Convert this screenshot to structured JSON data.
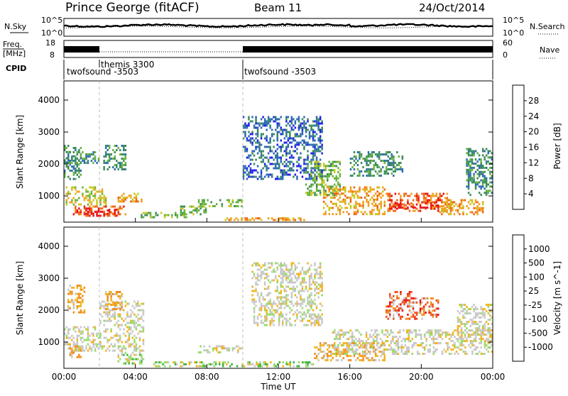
{
  "header": {
    "station": "Prince George (fitACF)",
    "beam": "Beam 11",
    "date": "24/Oct/2014"
  },
  "noise_panel": {
    "left_label": "N.Sky",
    "left_ticks": [
      "10^5",
      "10^0"
    ],
    "right_label": "N.Search",
    "right_ticks": [
      "10^5",
      "10^0"
    ]
  },
  "freq_panel": {
    "left_label_1": "Freq.",
    "left_label_2": "[MHz]",
    "left_ticks": [
      "18",
      "8"
    ],
    "right_label": "Nave",
    "right_ticks": [
      "60",
      "0"
    ]
  },
  "cpid_panel": {
    "label": "CPID",
    "segments": [
      {
        "name": "twofsound -3503",
        "start_hour": 0
      },
      {
        "name": "themis 3300",
        "start_hour": 2
      },
      {
        "name": "twofsound -3503",
        "start_hour": 10
      }
    ]
  },
  "x_axis": {
    "label": "Time UT",
    "ticks": [
      "00:00",
      "04:00",
      "08:00",
      "12:00",
      "16:00",
      "20:00",
      "00:00"
    ]
  },
  "chart_data": [
    {
      "type": "heatmap",
      "panel": "power",
      "ylabel": "Slant Range [km]",
      "yticks": [
        "1000",
        "2000",
        "3000",
        "4000"
      ],
      "ylim": [
        180,
        4600
      ],
      "xlim_hours": [
        0,
        24
      ],
      "colorbar": {
        "label": "Power [dB]",
        "ticks": [
          "4",
          "8",
          "12",
          "16",
          "20",
          "24",
          "28"
        ],
        "colors": [
          "#1e1ef0",
          "#2e6ab4",
          "#3a8c5a",
          "#68b43c",
          "#c8c81e",
          "#f0a01e",
          "#f06414",
          "#e61414"
        ],
        "range": [
          0,
          32
        ]
      },
      "regions": [
        {
          "t": [
            0.1,
            2.4
          ],
          "r": [
            700,
            1300
          ],
          "level": 4
        },
        {
          "t": [
            0.5,
            3.5
          ],
          "r": [
            400,
            700
          ],
          "level": 6
        },
        {
          "t": [
            1.2,
            3.0
          ],
          "r": [
            350,
            600
          ],
          "level": 7
        },
        {
          "t": [
            3.0,
            4.4
          ],
          "r": [
            800,
            1100
          ],
          "level": 5
        },
        {
          "t": [
            0.0,
            1.0
          ],
          "r": [
            1500,
            2600
          ],
          "level": 2
        },
        {
          "t": [
            0.2,
            2.0
          ],
          "r": [
            2000,
            2400
          ],
          "level": 2
        },
        {
          "t": [
            2.2,
            3.5
          ],
          "r": [
            1800,
            2600
          ],
          "level": 2
        },
        {
          "t": [
            4.3,
            7.0
          ],
          "r": [
            300,
            500
          ],
          "level": 3
        },
        {
          "t": [
            6.5,
            8.0
          ],
          "r": [
            400,
            700
          ],
          "level": 3
        },
        {
          "t": [
            7.5,
            10.0
          ],
          "r": [
            650,
            900
          ],
          "level": 3
        },
        {
          "t": [
            9.0,
            13.5
          ],
          "r": [
            230,
            330
          ],
          "level": 5
        },
        {
          "t": [
            10.0,
            14.5
          ],
          "r": [
            1500,
            3500
          ],
          "level": 1
        },
        {
          "t": [
            13.5,
            15.5
          ],
          "r": [
            1000,
            2100
          ],
          "level": 3
        },
        {
          "t": [
            14.5,
            18.0
          ],
          "r": [
            400,
            1300
          ],
          "level": 5
        },
        {
          "t": [
            16.0,
            19.0
          ],
          "r": [
            1600,
            2400
          ],
          "level": 2
        },
        {
          "t": [
            18.0,
            21.5
          ],
          "r": [
            500,
            1100
          ],
          "level": 6
        },
        {
          "t": [
            18.5,
            21.0
          ],
          "r": [
            600,
            800
          ],
          "level": 7
        },
        {
          "t": [
            21.0,
            23.5
          ],
          "r": [
            400,
            900
          ],
          "level": 5
        },
        {
          "t": [
            22.5,
            24.0
          ],
          "r": [
            1000,
            2500
          ],
          "level": 2
        }
      ]
    },
    {
      "type": "heatmap",
      "panel": "velocity",
      "ylabel": "Slant Range [km]",
      "yticks": [
        "1000",
        "2000",
        "3000",
        "4000"
      ],
      "ylim": [
        180,
        4600
      ],
      "xlim_hours": [
        0,
        24
      ],
      "colorbar": {
        "label": "Velocity [m s^-1]",
        "ticks": [
          "1000",
          "500",
          "100",
          "25",
          "-25",
          "-100",
          "-500",
          "-1000"
        ],
        "colors": [
          "#1e46c8",
          "#3c8c5a",
          "#3cb43c",
          "#96dc64",
          "#c8c8c8",
          "#f0b41e",
          "#f08c1e",
          "#f0501e",
          "#e61414"
        ]
      },
      "regions": [
        {
          "t": [
            0.0,
            4.5
          ],
          "r": [
            700,
            1500
          ],
          "class": "ground"
        },
        {
          "t": [
            2.0,
            4.5
          ],
          "r": [
            1500,
            2300
          ],
          "class": "ground"
        },
        {
          "t": [
            0.2,
            1.2
          ],
          "r": [
            1900,
            2800
          ],
          "class": "neg-small"
        },
        {
          "t": [
            2.3,
            3.3
          ],
          "r": [
            2000,
            2600
          ],
          "class": "neg-small"
        },
        {
          "t": [
            0.3,
            1.0
          ],
          "r": [
            500,
            900
          ],
          "class": "neg-small"
        },
        {
          "t": [
            3.0,
            4.5
          ],
          "r": [
            300,
            700
          ],
          "class": "pos-small"
        },
        {
          "t": [
            7.5,
            10.0
          ],
          "r": [
            650,
            900
          ],
          "class": "ground"
        },
        {
          "t": [
            5.0,
            14.0
          ],
          "r": [
            220,
            400
          ],
          "class": "pos-mid"
        },
        {
          "t": [
            10.5,
            14.5
          ],
          "r": [
            1500,
            3500
          ],
          "class": "ground"
        },
        {
          "t": [
            14.0,
            18.0
          ],
          "r": [
            400,
            1000
          ],
          "class": "neg-small"
        },
        {
          "t": [
            15.0,
            24.0
          ],
          "r": [
            600,
            1400
          ],
          "class": "ground"
        },
        {
          "t": [
            18.0,
            19.5
          ],
          "r": [
            1700,
            2600
          ],
          "class": "neg-mid"
        },
        {
          "t": [
            19.5,
            21.0
          ],
          "r": [
            1700,
            2400
          ],
          "class": "neg-mid"
        },
        {
          "t": [
            22.0,
            24.0
          ],
          "r": [
            1000,
            2200
          ],
          "class": "ground"
        }
      ]
    }
  ]
}
